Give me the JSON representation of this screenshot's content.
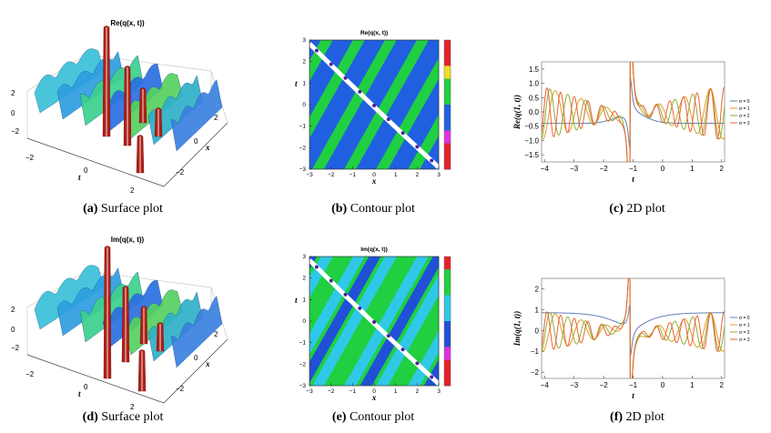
{
  "chart_data": [
    {
      "id": "a",
      "type": "surface",
      "title": "Re(q(x, t))",
      "caption_tag": "(a)",
      "caption_text": "Surface plot",
      "x_ticks": [
        "2",
        "0",
        "−2"
      ],
      "xlabel": "x",
      "t_ticks": [
        "−2",
        "0",
        "2"
      ],
      "tlabel": "t",
      "z_ticks": [
        "2",
        "0",
        "−2"
      ]
    },
    {
      "id": "b",
      "type": "contour",
      "title": "Re(q(x, t))",
      "caption_tag": "(b)",
      "caption_text": "Contour plot",
      "x_ticks": [
        "−3",
        "−2",
        "−1",
        "0",
        "1",
        "2",
        "3"
      ],
      "xlabel": "x",
      "y_ticks": [
        "3",
        "2",
        "1",
        "0",
        "−1",
        "−2",
        "−3"
      ],
      "ylabel": "t",
      "xlim": [
        -3,
        3
      ],
      "ylim": [
        -3,
        3
      ],
      "colorbar": [
        "#e8202a",
        "#e8202a",
        "#f0e020",
        "#20d040",
        "#20d040",
        "#2060e0",
        "#2060e0",
        "#e030e0",
        "#e8202a",
        "#e8202a"
      ],
      "bands": [
        "#2060e0",
        "#20d040"
      ]
    },
    {
      "id": "c",
      "type": "line",
      "title": "",
      "caption_tag": "(c)",
      "caption_text": "2D plot",
      "xlabel": "t",
      "ylabel": "Re(q(1, t))",
      "xlim": [
        -4.1,
        2.1
      ],
      "ylim": [
        -1.75,
        1.75
      ],
      "x_ticks": [
        -4,
        -3,
        -2,
        -1,
        0,
        1,
        2
      ],
      "x_tick_labels": [
        "−4",
        "−3",
        "−2",
        "−1",
        "0",
        "1",
        "2"
      ],
      "y_ticks": [
        -1.5,
        -1.0,
        -0.5,
        0.0,
        0.5,
        1.0,
        1.5
      ],
      "y_tick_labels": [
        "−1.5",
        "−1.0",
        "−0.5",
        "0.0",
        "0.5",
        "1.0",
        "1.5"
      ],
      "series": [
        {
          "name": "σ = 0",
          "color": "#5e81b5",
          "sigma": 0
        },
        {
          "name": "σ = 1",
          "color": "#e19c24",
          "sigma": 1
        },
        {
          "name": "σ = 2",
          "color": "#8fb032",
          "sigma": 2
        },
        {
          "name": "σ = 3",
          "color": "#eb6235",
          "sigma": 3
        }
      ]
    },
    {
      "id": "d",
      "type": "surface",
      "title": "Im(q(x, t))",
      "caption_tag": "(d)",
      "caption_text": "Surface plot",
      "x_ticks": [
        "2",
        "0",
        "−2"
      ],
      "xlabel": "x",
      "t_ticks": [
        "−2",
        "0",
        "2"
      ],
      "tlabel": "t",
      "z_ticks": [
        "2",
        "0",
        "−2"
      ]
    },
    {
      "id": "e",
      "type": "contour",
      "title": "Im(q(x, t))",
      "caption_tag": "(e)",
      "caption_text": "Contour plot",
      "x_ticks": [
        "−3",
        "−2",
        "−1",
        "0",
        "1",
        "2",
        "3"
      ],
      "xlabel": "x",
      "y_ticks": [
        "3",
        "2",
        "1",
        "0",
        "−1",
        "−2",
        "−3"
      ],
      "ylabel": "t",
      "xlim": [
        -3,
        3
      ],
      "ylim": [
        -3,
        3
      ],
      "colorbar": [
        "#e8202a",
        "#20d040",
        "#20d040",
        "#30c8e8",
        "#30c8e8",
        "#2050d8",
        "#2050d8",
        "#e030e0",
        "#e8202a",
        "#e8202a"
      ],
      "bands": [
        "#20d040",
        "#30c8e8",
        "#2050d8",
        "#30c8e8"
      ]
    },
    {
      "id": "f",
      "type": "line",
      "title": "",
      "caption_tag": "(f)",
      "caption_text": "2D plot",
      "xlabel": "t",
      "ylabel": "Im(q(1, t))",
      "xlim": [
        -4.1,
        2.1
      ],
      "ylim": [
        -2.3,
        2.5
      ],
      "x_ticks": [
        -4,
        -3,
        -2,
        -1,
        0,
        1,
        2
      ],
      "x_tick_labels": [
        "−4",
        "−3",
        "−2",
        "−1",
        "0",
        "1",
        "2"
      ],
      "y_ticks": [
        -2,
        -1,
        0,
        1,
        2
      ],
      "y_tick_labels": [
        "−2",
        "−1",
        "0",
        "1",
        "2"
      ],
      "series": [
        {
          "name": "σ = 0",
          "color": "#5e81b5",
          "sigma": 0
        },
        {
          "name": "σ = 1",
          "color": "#e19c24",
          "sigma": 1
        },
        {
          "name": "σ = 2",
          "color": "#8fb032",
          "sigma": 2
        },
        {
          "name": "σ = 3",
          "color": "#eb6235",
          "sigma": 3
        }
      ]
    }
  ]
}
